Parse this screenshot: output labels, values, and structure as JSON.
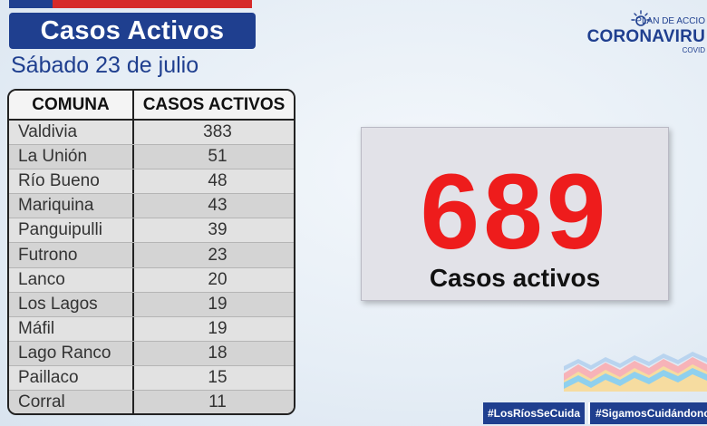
{
  "header": {
    "title": "Casos Activos",
    "date": "Sábado 23 de julio"
  },
  "logo": {
    "top_text": "PLAN DE ACCIO",
    "main_text": "CORONAVIRU",
    "sub_text": "COVID"
  },
  "table": {
    "headers": [
      "COMUNA",
      "CASOS ACTIVOS"
    ],
    "rows": [
      {
        "comuna": "Valdivia",
        "casos": "383"
      },
      {
        "comuna": "La Unión",
        "casos": "51"
      },
      {
        "comuna": "Río Bueno",
        "casos": "48"
      },
      {
        "comuna": "Mariquina",
        "casos": "43"
      },
      {
        "comuna": "Panguipulli",
        "casos": "39"
      },
      {
        "comuna": "Futrono",
        "casos": "23"
      },
      {
        "comuna": "Lanco",
        "casos": "20"
      },
      {
        "comuna": "Los Lagos",
        "casos": "19"
      },
      {
        "comuna": "Máfil",
        "casos": "19"
      },
      {
        "comuna": "Lago Ranco",
        "casos": "18"
      },
      {
        "comuna": "Paillaco",
        "casos": "15"
      },
      {
        "comuna": "Corral",
        "casos": "11"
      }
    ]
  },
  "total": {
    "value": "689",
    "label": "Casos activos"
  },
  "footer": {
    "hashtag1": "#LosRíosSeCuida",
    "hashtag2": "#SigamosCuidándonos"
  },
  "colors": {
    "brand_blue": "#1f3f8f",
    "accent_red": "#ee1c1c"
  }
}
